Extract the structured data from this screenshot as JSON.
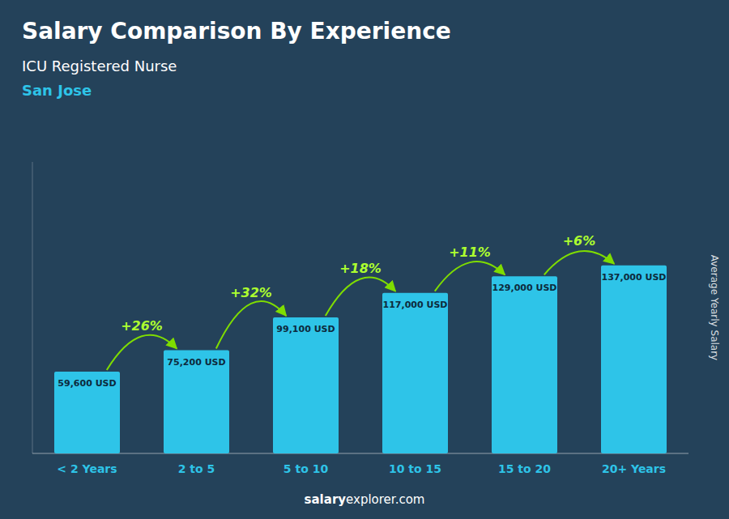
{
  "chart_data": {
    "type": "bar",
    "title": "Salary Comparison By Experience",
    "subtitle": "ICU Registered Nurse",
    "city": "San Jose",
    "ylabel": "Average Yearly Salary",
    "categories": [
      "< 2 Years",
      "2 to 5",
      "5 to 10",
      "10 to 15",
      "15 to 20",
      "20+ Years"
    ],
    "values": [
      59600,
      75200,
      99100,
      117000,
      129000,
      137000
    ],
    "value_labels": [
      "59,600 USD",
      "75,200 USD",
      "99,100 USD",
      "117,000 USD",
      "129,000 USD",
      "137,000 USD"
    ],
    "data_labels": true,
    "annotations": [
      "+26%",
      "+32%",
      "+18%",
      "+11%",
      "+6%"
    ],
    "watermark": [
      "salary",
      "explorer.com"
    ],
    "color": "#2EC4E8",
    "ylim": [
      0,
      212350
    ],
    "tick_labels": "x",
    "grid": false
  }
}
